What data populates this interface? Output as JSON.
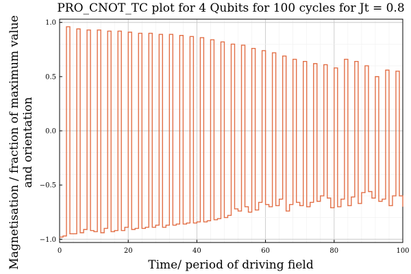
{
  "chart_data": {
    "type": "line",
    "title": "PRO_CNOT_TC plot for 4 Qubits for 100 cycles for Jt = 0.8",
    "xlabel": "Time/ period of driving field",
    "ylabel_lines": [
      "Magnetisation / fraction of maximum value",
      "and orientation"
    ],
    "xlim": [
      0,
      100
    ],
    "ylim": [
      -1.03,
      1.03
    ],
    "xticks": [
      0,
      20,
      40,
      60,
      80,
      100
    ],
    "xtick_labels": [
      "0",
      "20",
      "40",
      "60",
      "80",
      "100"
    ],
    "yticks": [
      -1.0,
      -0.5,
      0.0,
      0.5,
      1.0
    ],
    "ytick_labels": [
      "−1.0",
      "−0.5",
      "0.0",
      "0.5",
      "1.0"
    ],
    "grid": true,
    "line_color": "#e26f46",
    "series": [
      {
        "step": "post",
        "x": [
          0,
          1,
          2,
          3,
          4,
          5,
          6,
          7,
          8,
          9,
          10,
          11,
          12,
          13,
          14,
          15,
          16,
          17,
          18,
          19,
          20,
          21,
          22,
          23,
          24,
          25,
          26,
          27,
          28,
          29,
          30,
          31,
          32,
          33,
          34,
          35,
          36,
          37,
          38,
          39,
          40,
          41,
          42,
          43,
          44,
          45,
          46,
          47,
          48,
          49,
          50,
          51,
          52,
          53,
          54,
          55,
          56,
          57,
          58,
          59,
          60,
          61,
          62,
          63,
          64,
          65,
          66,
          67,
          68,
          69,
          70,
          71,
          72,
          73,
          74,
          75,
          76,
          77,
          78,
          79,
          80,
          81,
          82,
          83,
          84,
          85,
          86,
          87,
          88,
          89,
          90,
          91,
          92,
          93,
          94,
          95,
          96,
          97,
          98,
          99,
          100
        ],
        "y": [
          -0.98,
          -0.97,
          0.96,
          -0.95,
          -0.95,
          0.94,
          -0.94,
          -0.91,
          0.93,
          -0.92,
          -0.93,
          0.93,
          -0.94,
          -0.9,
          0.92,
          -0.93,
          -0.92,
          0.92,
          -0.92,
          -0.89,
          0.91,
          -0.91,
          -0.9,
          0.9,
          -0.9,
          -0.89,
          0.9,
          -0.89,
          -0.87,
          0.89,
          -0.89,
          -0.87,
          0.89,
          -0.87,
          -0.86,
          0.88,
          -0.86,
          -0.85,
          0.87,
          -0.85,
          -0.84,
          0.86,
          -0.84,
          -0.83,
          0.84,
          -0.82,
          -0.81,
          0.82,
          -0.8,
          -0.78,
          0.8,
          -0.72,
          -0.74,
          0.79,
          -0.7,
          -0.75,
          0.76,
          -0.73,
          -0.66,
          0.74,
          -0.68,
          -0.7,
          0.72,
          -0.69,
          -0.63,
          0.69,
          -0.74,
          -0.68,
          0.66,
          -0.66,
          -0.69,
          0.64,
          -0.7,
          -0.66,
          0.62,
          -0.65,
          -0.6,
          0.61,
          -0.62,
          -0.71,
          0.58,
          -0.7,
          -0.63,
          0.66,
          -0.69,
          -0.61,
          0.64,
          -0.67,
          -0.57,
          0.6,
          -0.56,
          -0.62,
          0.5,
          -0.65,
          -0.63,
          0.56,
          -0.69,
          -0.6,
          0.55,
          -0.6,
          -0.7
        ]
      }
    ]
  }
}
